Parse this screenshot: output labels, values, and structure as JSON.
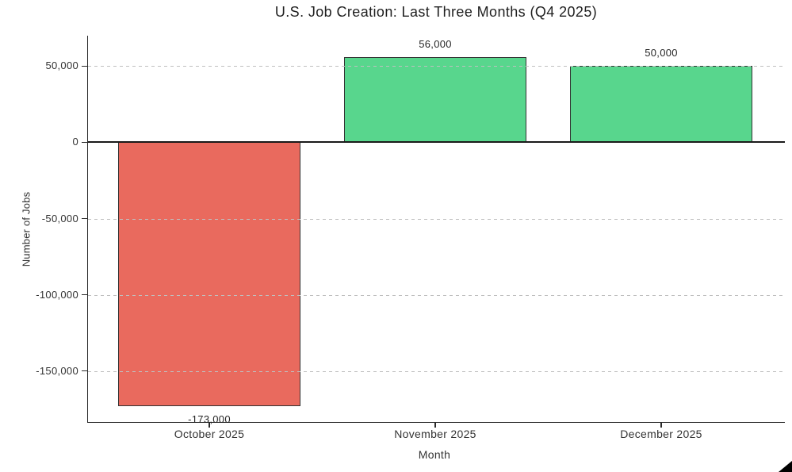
{
  "chart_data": {
    "type": "bar",
    "title": "U.S. Job Creation: Last Three Months (Q4 2025)",
    "xlabel": "Month",
    "ylabel": "Number of Jobs",
    "categories": [
      "October 2025",
      "November 2025",
      "December 2025"
    ],
    "values": [
      -173000,
      56000,
      50000
    ],
    "bar_labels": [
      "-173,000",
      "56,000",
      "50,000"
    ],
    "bar_colors": [
      "#e96a5e",
      "#58d68d",
      "#58d68d"
    ],
    "yticks": [
      50000,
      0,
      -50000,
      -100000,
      -150000
    ],
    "ytick_labels": [
      "50,000",
      "0",
      "-50,000",
      "-100,000",
      "-150,000"
    ],
    "ylim": [
      -184000,
      70000
    ],
    "grid": "horizontal-dashed",
    "zero_line": true,
    "legend": null,
    "colors": {
      "negative_bar": "#e96a5e",
      "positive_bar": "#58d68d",
      "bar_edge": "#333333",
      "gridline": "#bfbfbf",
      "zero_line": "#1a1a1a",
      "text": "#333333",
      "background": "#ffffff"
    }
  }
}
